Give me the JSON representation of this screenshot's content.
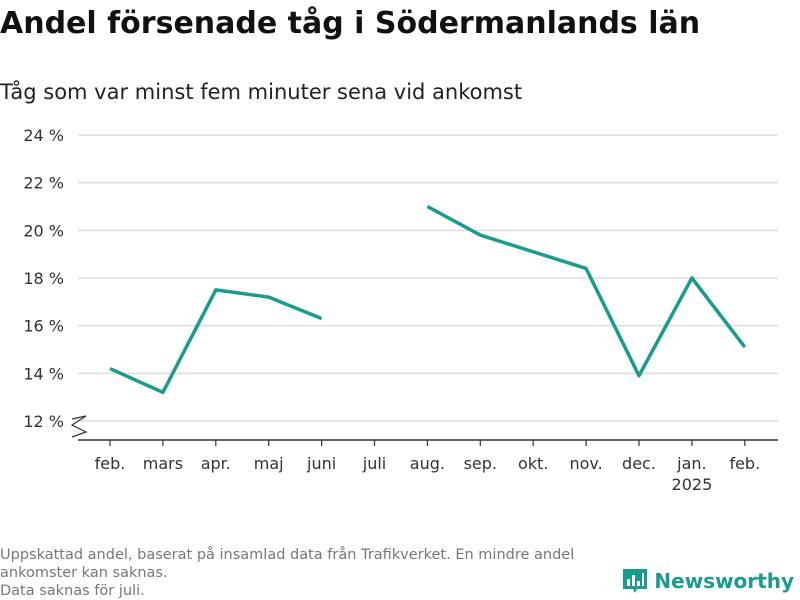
{
  "title": "Andel försenade tåg i Södermanlands län",
  "subtitle": "Tåg som var minst fem minuter sena vid ankomst",
  "notes": [
    "Uppskattad andel, baserat på insamlad data från Trafikverket. En mindre andel ankomster kan saknas.",
    "Data saknas för juli."
  ],
  "brand": {
    "name": "Newsworthy"
  },
  "colors": {
    "line": "#1a9b90",
    "grid": "#dddddd",
    "axis": "#333333",
    "text": "#333333"
  },
  "chart_data": {
    "type": "line",
    "title": "Andel försenade tåg i Södermanlands län",
    "subtitle": "Tåg som var minst fem minuter sena vid ankomst",
    "categories": [
      "feb.",
      "mars",
      "apr.",
      "maj",
      "juni",
      "juli",
      "aug.",
      "sep.",
      "okt.",
      "nov.",
      "dec.",
      "jan.",
      "feb."
    ],
    "year_labels": [
      "",
      "",
      "",
      "",
      "",
      "",
      "",
      "",
      "",
      "",
      "",
      "2025",
      ""
    ],
    "values": [
      14.2,
      13.2,
      17.5,
      17.2,
      16.3,
      null,
      21.0,
      19.8,
      19.1,
      18.4,
      13.9,
      18.0,
      15.1
    ],
    "yticks": [
      12,
      14,
      16,
      18,
      20,
      22,
      24
    ],
    "ytick_labels": [
      "12 %",
      "14 %",
      "16 %",
      "18 %",
      "20 %",
      "22 %",
      "24 %"
    ],
    "ylim": [
      12,
      24
    ],
    "axis_break": true,
    "grid": true,
    "legend": "none"
  }
}
